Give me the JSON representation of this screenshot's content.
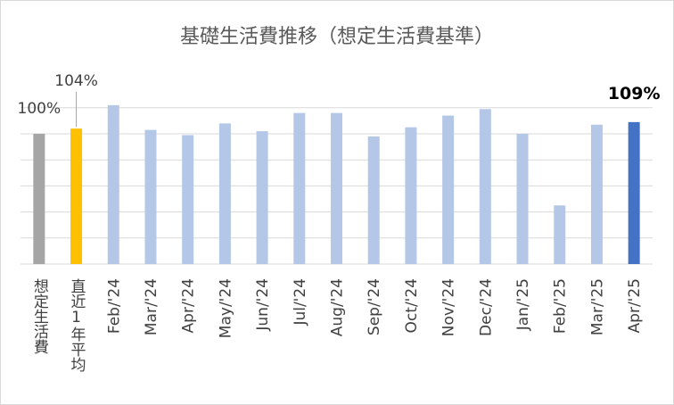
{
  "chart_data": {
    "type": "bar",
    "title": "基礎生活費推移（想定生活費基準）",
    "categories": [
      "想定生活費",
      "直近1年平均",
      "Feb/'24",
      "Mar/'24",
      "Apr/'24",
      "May/'24",
      "Jun/'24",
      "Jul/'24",
      "Aug/'24",
      "Sep/'24",
      "Oct/'24",
      "Nov/'24",
      "Dec/'24",
      "Jan/'25",
      "Feb/'25",
      "Mar/'25",
      "Apr/'25"
    ],
    "values": [
      100,
      104,
      122,
      103,
      99,
      108,
      102,
      116,
      116,
      98,
      105,
      114,
      119,
      100,
      45,
      107,
      109
    ],
    "value_labels": [
      "100%",
      "104%",
      null,
      null,
      null,
      null,
      null,
      null,
      null,
      null,
      null,
      null,
      null,
      null,
      null,
      null,
      "109%"
    ],
    "colors": [
      "#a5a5a5",
      "#ffc000",
      "#b4c7e7",
      "#b4c7e7",
      "#b4c7e7",
      "#b4c7e7",
      "#b4c7e7",
      "#b4c7e7",
      "#b4c7e7",
      "#b4c7e7",
      "#b4c7e7",
      "#b4c7e7",
      "#b4c7e7",
      "#b4c7e7",
      "#b4c7e7",
      "#b4c7e7",
      "#4472c4"
    ],
    "ylim": [
      0,
      125
    ],
    "yticks": [
      0,
      20,
      40,
      60,
      80,
      100,
      120
    ],
    "grid": true
  }
}
